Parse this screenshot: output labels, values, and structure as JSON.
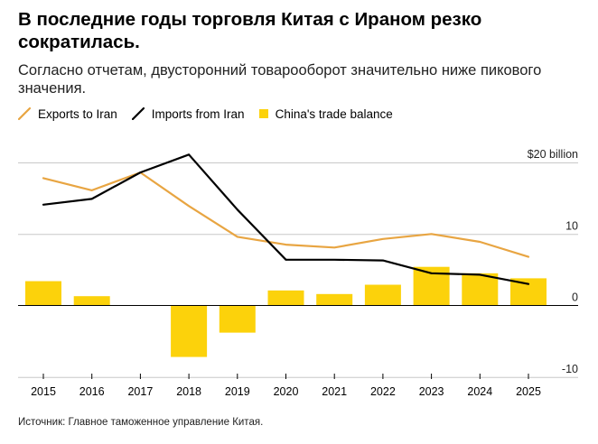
{
  "header": {
    "title": "В последние годы торговля Китая с Ираном резко сократилась.",
    "subtitle": "Согласно отчетам, двусторонний товарооборот значительно ниже пикового значения."
  },
  "footer": {
    "source": "Источник: Главное таможенное управление Китая."
  },
  "colors": {
    "exports": "#e8a542",
    "imports": "#000000",
    "balance": "#fcd20b",
    "grid": "#c8c8c8",
    "zero_line": "#000000"
  },
  "chart_data": {
    "type": "bar",
    "title": "В последние годы торговля Китая с Ираном резко сократилась.",
    "subtitle": "Согласно отчетам, двусторонний товарооборот значительно ниже пикового значения.",
    "xlabel": "",
    "ylabel": "",
    "ylim": [
      -10,
      20
    ],
    "y_ticks": [
      {
        "value": 20,
        "label": "$20 billion"
      },
      {
        "value": 10,
        "label": "10"
      },
      {
        "value": 0,
        "label": "0"
      },
      {
        "value": -10,
        "label": "-10"
      }
    ],
    "grid": true,
    "legend_position": "top-left",
    "categories": [
      "2015",
      "2016",
      "2017",
      "2018",
      "2019",
      "2020",
      "2021",
      "2022",
      "2023",
      "2024",
      "2025"
    ],
    "series": [
      {
        "name": "Exports to Iran",
        "type": "line",
        "color": "#e8a542",
        "values": [
          17.8,
          16.1,
          18.6,
          13.9,
          9.6,
          8.5,
          8.1,
          9.3,
          10.0,
          8.9,
          6.8
        ]
      },
      {
        "name": "Imports from Iran",
        "type": "line",
        "color": "#000000",
        "values": [
          14.1,
          14.9,
          18.6,
          21.1,
          13.4,
          6.4,
          6.4,
          6.3,
          4.5,
          4.3,
          3.0
        ]
      },
      {
        "name": "China's trade balance",
        "type": "bar",
        "color": "#fcd20b",
        "values": [
          3.4,
          1.3,
          0.0,
          -7.2,
          -3.8,
          2.1,
          1.6,
          2.9,
          5.4,
          4.5,
          3.8
        ]
      }
    ],
    "source": "Источник: Главное таможенное управление Китая."
  }
}
